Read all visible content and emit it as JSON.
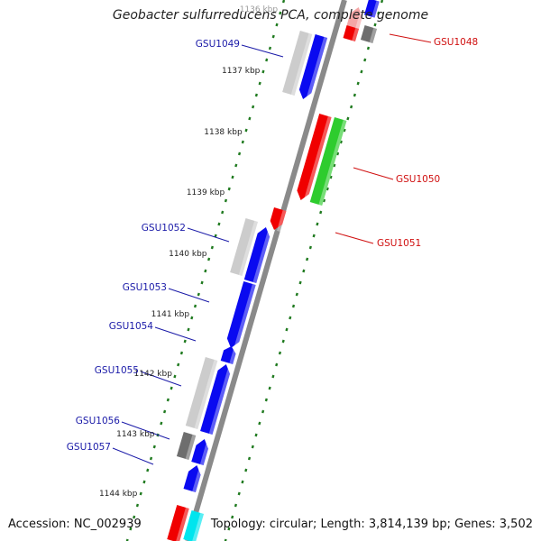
{
  "title": "Geobacter sulfurreducens PCA, complete genome",
  "accession": "Accession: NC_002939",
  "summary": "Topology: circular; Length: 3,814,139 bp; Genes: 3,502",
  "colors": {
    "backbone": "#8a8a8a",
    "tick": "#1f7a1f",
    "label_blue": "#1a1aa8",
    "label_red": "#d01010",
    "gene_blue": "#0a0af0",
    "gene_red": "#f00000",
    "gene_green": "#2ecc2e",
    "gene_gray_light": "#cccccc",
    "gene_gray_dark": "#6e6e6e",
    "gene_cyan": "#00e5ee",
    "gene_pink": "#f4a6a6"
  },
  "kbp_labels": [
    "1136 kbp",
    "1137 kbp",
    "1138 kbp",
    "1139 kbp",
    "1140 kbp",
    "1141 kbp",
    "1142 kbp",
    "1143 kbp",
    "1144 kbp"
  ],
  "gene_labels": [
    {
      "text": "GSU1048",
      "color": "red"
    },
    {
      "text": "GSU1049",
      "color": "blue"
    },
    {
      "text": "GSU1050",
      "color": "red"
    },
    {
      "text": "GSU1051",
      "color": "red"
    },
    {
      "text": "GSU1052",
      "color": "blue"
    },
    {
      "text": "GSU1053",
      "color": "blue"
    },
    {
      "text": "GSU1054",
      "color": "blue"
    },
    {
      "text": "GSU1055",
      "color": "blue"
    },
    {
      "text": "GSU1056",
      "color": "blue"
    },
    {
      "text": "GSU1057",
      "color": "blue"
    }
  ]
}
